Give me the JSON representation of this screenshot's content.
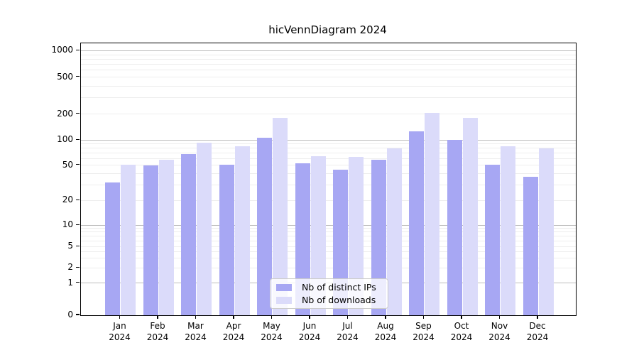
{
  "title": "hicVennDiagram 2024",
  "colors": {
    "ips": "#a7a7f3",
    "downloads": "#dbdbfa",
    "grid_major": "#bdbdbd",
    "grid_minor": "#ededed",
    "axis": "#000000",
    "legend_border": "#cccccc"
  },
  "legend": {
    "items": [
      {
        "label": "Nb of distinct IPs",
        "color_key": "ips"
      },
      {
        "label": "Nb of downloads",
        "color_key": "downloads"
      }
    ]
  },
  "chart_data": {
    "type": "bar",
    "title": "hicVennDiagram 2024",
    "categories": [
      "Jan 2024",
      "Feb 2024",
      "Mar 2024",
      "Apr 2024",
      "May 2024",
      "Jun 2024",
      "Jul 2024",
      "Aug 2024",
      "Sep 2024",
      "Oct 2024",
      "Nov 2024",
      "Dec 2024"
    ],
    "month_labels": [
      "Jan",
      "Feb",
      "Mar",
      "Apr",
      "May",
      "Jun",
      "Jul",
      "Aug",
      "Sep",
      "Oct",
      "Nov",
      "Dec"
    ],
    "year_label": "2024",
    "series": [
      {
        "name": "Nb of distinct IPs",
        "color_key": "ips",
        "values": [
          32,
          50,
          68,
          51,
          107,
          53,
          45,
          58,
          125,
          100,
          51,
          37
        ]
      },
      {
        "name": "Nb of downloads",
        "color_key": "downloads",
        "values": [
          51,
          58,
          93,
          85,
          182,
          64,
          63,
          80,
          204,
          182,
          84,
          79
        ]
      }
    ],
    "xlabel": "",
    "ylabel": "",
    "yscale": "symlog",
    "yticks": [
      0,
      1,
      2,
      5,
      10,
      20,
      50,
      100,
      200,
      500,
      1000
    ],
    "ylim": [
      0,
      1200
    ],
    "grid": true,
    "legend_position": "lower center"
  }
}
